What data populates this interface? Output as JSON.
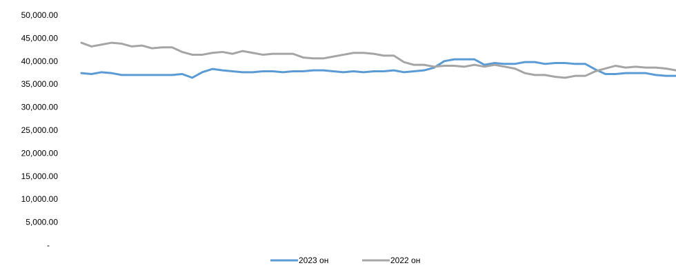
{
  "chart_data": {
    "type": "line",
    "title": "",
    "xlabel": "",
    "ylabel": "",
    "ylim": [
      0,
      50000
    ],
    "y_ticks": [
      {
        "value": 0,
        "label": "-"
      },
      {
        "value": 5000,
        "label": "5,000.00"
      },
      {
        "value": 10000,
        "label": "10,000.00"
      },
      {
        "value": 15000,
        "label": "15,000.00"
      },
      {
        "value": 20000,
        "label": "20,000.00"
      },
      {
        "value": 25000,
        "label": "25,000.00"
      },
      {
        "value": 30000,
        "label": "30,000.00"
      },
      {
        "value": 35000,
        "label": "35,000.00"
      },
      {
        "value": 40000,
        "label": "40,000.00"
      },
      {
        "value": 45000,
        "label": "45,000.00"
      },
      {
        "value": 50000,
        "label": "50,000.00"
      }
    ],
    "grid": false,
    "legend_position": "bottom-center",
    "series": [
      {
        "name": "2023 он",
        "color": "#5B9BD5",
        "values": [
          37400,
          37200,
          37600,
          37400,
          37000,
          37000,
          37000,
          37000,
          37000,
          37000,
          37200,
          36400,
          37600,
          38300,
          38000,
          37800,
          37600,
          37600,
          37800,
          37800,
          37600,
          37800,
          37800,
          38000,
          38000,
          37800,
          37600,
          37800,
          37600,
          37800,
          37800,
          38000,
          37600,
          37800,
          38000,
          38600,
          40000,
          40400,
          40400,
          40400,
          39200,
          39600,
          39400,
          39400,
          39800,
          39800,
          39400,
          39600,
          39600,
          39400,
          39400,
          38200,
          37200,
          37200,
          37400,
          37400,
          37400,
          37000,
          36800,
          36800
        ]
      },
      {
        "name": "2022 он",
        "color": "#A5A5A5",
        "values": [
          44000,
          43200,
          43600,
          44000,
          43800,
          43200,
          43400,
          42800,
          43000,
          43000,
          42000,
          41400,
          41400,
          41800,
          42000,
          41600,
          42200,
          41800,
          41400,
          41600,
          41600,
          41600,
          40800,
          40600,
          40600,
          41000,
          41400,
          41800,
          41800,
          41600,
          41200,
          41200,
          39800,
          39200,
          39200,
          38800,
          39000,
          39000,
          38800,
          39200,
          38800,
          39200,
          38800,
          38400,
          37400,
          37000,
          37000,
          36600,
          36400,
          36800,
          36800,
          37800,
          38400,
          39000,
          38600,
          38800,
          38600,
          38600,
          38400,
          38000
        ]
      }
    ]
  }
}
